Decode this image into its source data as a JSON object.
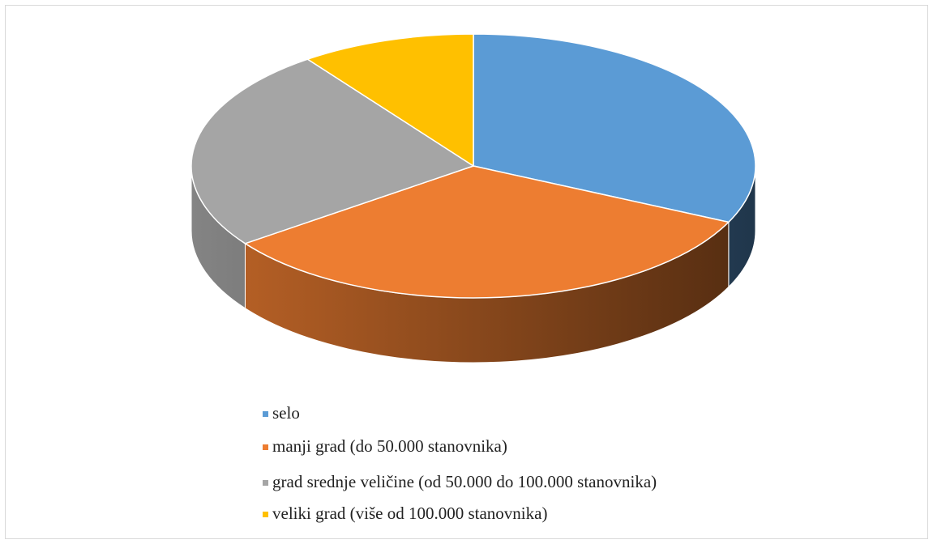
{
  "chart_data": {
    "type": "pie",
    "categories": [
      "selo",
      "manji grad (do 50.000 stanovnika)",
      "grad srednje veličine (od 50.000 do 100.000 stanovnika)",
      "veliki grad (više od 100.000 stanovnika)"
    ],
    "values": [
      32,
      33,
      25,
      10
    ],
    "colors": [
      "#5b9bd5",
      "#ed7d31",
      "#a5a5a5",
      "#ffc000"
    ],
    "legend": "bottom"
  }
}
